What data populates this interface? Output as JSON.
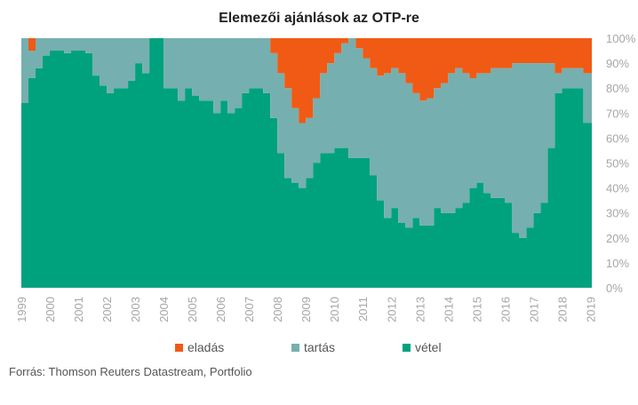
{
  "chart_data": {
    "type": "area",
    "stacked": true,
    "percent": true,
    "title": "Elemezői ajánlások az OTP-re",
    "source": "Forrás: Thomson Reuters Datastream, Portfolio",
    "ylim": [
      0,
      100
    ],
    "y_ticks": [
      "0%",
      "10%",
      "20%",
      "30%",
      "40%",
      "50%",
      "60%",
      "70%",
      "80%",
      "90%",
      "100%"
    ],
    "x_range": [
      1999,
      2019.05
    ],
    "x_ticks": [
      "1999",
      "2000",
      "2001",
      "2002",
      "2003",
      "2004",
      "2005",
      "2006",
      "2007",
      "2008",
      "2009",
      "2010",
      "2011",
      "2012",
      "2013",
      "2014",
      "2015",
      "2016",
      "2017",
      "2018",
      "2019"
    ],
    "legend_position": "bottom",
    "grid": false,
    "x": [
      1999.0,
      1999.25,
      1999.5,
      1999.75,
      2000.0,
      2000.25,
      2000.5,
      2000.75,
      2001.0,
      2001.25,
      2001.5,
      2001.75,
      2002.0,
      2002.25,
      2002.5,
      2002.75,
      2003.0,
      2003.25,
      2003.5,
      2003.75,
      2004.0,
      2004.25,
      2004.5,
      2004.75,
      2005.0,
      2005.25,
      2005.5,
      2005.75,
      2006.0,
      2006.25,
      2006.5,
      2006.75,
      2007.0,
      2007.25,
      2007.5,
      2007.75,
      2008.0,
      2008.25,
      2008.5,
      2008.75,
      2009.0,
      2009.25,
      2009.5,
      2009.75,
      2010.0,
      2010.25,
      2010.5,
      2010.75,
      2011.0,
      2011.25,
      2011.5,
      2011.75,
      2012.0,
      2012.25,
      2012.5,
      2012.75,
      2013.0,
      2013.25,
      2013.5,
      2013.75,
      2014.0,
      2014.25,
      2014.5,
      2014.75,
      2015.0,
      2015.25,
      2015.5,
      2015.75,
      2016.0,
      2016.25,
      2016.5,
      2016.75,
      2017.0,
      2017.25,
      2017.5,
      2017.75,
      2018.0,
      2018.25,
      2018.5,
      2018.75,
      2019.0
    ],
    "series": [
      {
        "name": "eladás",
        "color": "#f05a14",
        "values": [
          0,
          5,
          0,
          0,
          0,
          0,
          0,
          0,
          0,
          0,
          0,
          0,
          0,
          0,
          0,
          0,
          0,
          0,
          0,
          0,
          0,
          0,
          0,
          0,
          0,
          0,
          0,
          0,
          0,
          0,
          0,
          0,
          0,
          0,
          0,
          6,
          14,
          20,
          28,
          34,
          32,
          24,
          14,
          10,
          6,
          2,
          0,
          4,
          8,
          12,
          15,
          14,
          12,
          14,
          18,
          22,
          25,
          24,
          20,
          18,
          14,
          12,
          14,
          16,
          14,
          14,
          12,
          12,
          12,
          10,
          10,
          10,
          10,
          10,
          10,
          14,
          12,
          12,
          12,
          14,
          14
        ]
      },
      {
        "name": "tartás",
        "color": "#76afaf",
        "values": [
          26,
          11,
          12,
          7,
          5,
          5,
          6,
          5,
          5,
          6,
          15,
          19,
          22,
          20,
          20,
          17,
          10,
          14,
          0,
          0,
          20,
          20,
          25,
          20,
          23,
          25,
          25,
          30,
          25,
          30,
          28,
          22,
          20,
          20,
          22,
          26,
          32,
          36,
          30,
          26,
          24,
          26,
          32,
          36,
          38,
          42,
          48,
          44,
          40,
          43,
          50,
          58,
          56,
          60,
          58,
          50,
          50,
          51,
          48,
          52,
          56,
          56,
          52,
          44,
          44,
          48,
          52,
          52,
          54,
          68,
          70,
          66,
          60,
          56,
          34,
          8,
          8,
          8,
          8,
          20,
          20
        ]
      },
      {
        "name": "vétel",
        "color": "#00a27d",
        "values": [
          74,
          84,
          88,
          93,
          95,
          95,
          94,
          95,
          95,
          94,
          85,
          81,
          78,
          80,
          80,
          83,
          90,
          86,
          100,
          100,
          80,
          80,
          75,
          80,
          77,
          75,
          75,
          70,
          75,
          70,
          72,
          78,
          80,
          80,
          78,
          68,
          54,
          44,
          42,
          40,
          44,
          50,
          54,
          54,
          56,
          56,
          52,
          52,
          52,
          45,
          35,
          28,
          32,
          26,
          24,
          28,
          25,
          25,
          32,
          30,
          30,
          32,
          34,
          40,
          42,
          38,
          36,
          36,
          34,
          22,
          20,
          24,
          30,
          34,
          56,
          78,
          80,
          80,
          80,
          66,
          66
        ]
      }
    ]
  }
}
